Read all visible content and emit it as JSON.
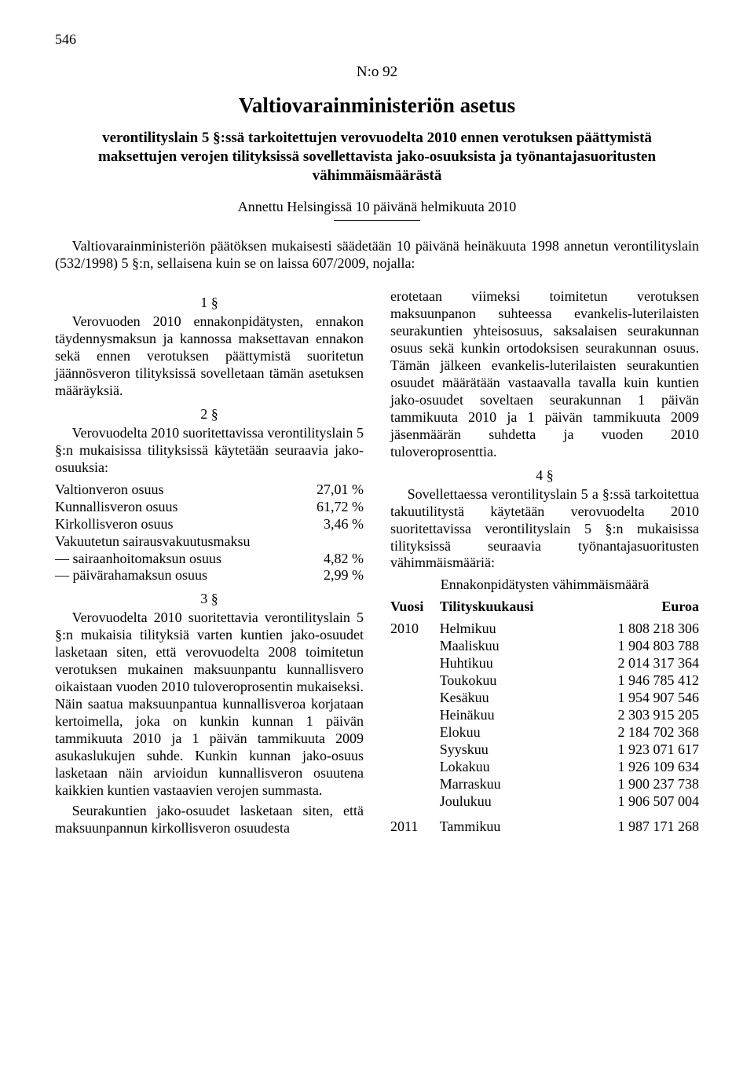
{
  "page_number": "546",
  "doc_number": "N:o 92",
  "authority": "Valtiovarainministeriön asetus",
  "title": "verontilityslain 5 §:ssä tarkoitettujen verovuodelta 2010 ennen verotuksen päättymistä maksettujen verojen tilityksissä sovellettavista jako-osuuksista ja työnantajasuoritusten vähimmäismäärästä",
  "given": "Annettu Helsingissä 10 päivänä helmikuuta 2010",
  "preamble": "Valtiovarainministeriön päätöksen mukaisesti säädetään 10 päivänä heinäkuuta 1998 annetun verontilityslain (532/1998) 5 §:n, sellaisena kuin se on laissa 607/2009, nojalla:",
  "s1_num": "1 §",
  "s1_text": "Verovuoden 2010 ennakonpidätysten, ennakon täydennysmaksun ja kannossa maksettavan ennakon sekä ennen verotuksen päättymistä suoritetun jäännösveron tilityksissä sovelletaan tämän asetuksen määräyksiä.",
  "s2_num": "2 §",
  "s2_text": "Verovuodelta 2010 suoritettavissa verontilityslain 5 §:n mukaisissa tilityksissä käytetään seuraavia jako-osuuksia:",
  "shares": [
    {
      "label": "Valtionveron osuus",
      "value": "27,01 %"
    },
    {
      "label": "Kunnallisveron osuus",
      "value": "61,72 %"
    },
    {
      "label": "Kirkollisveron osuus",
      "value": "3,46 %"
    },
    {
      "label": "Vakuutetun sairausvakuutusmaksu",
      "value": ""
    },
    {
      "label": "— sairaanhoitomaksun osuus",
      "value": "4,82 %"
    },
    {
      "label": "— päivärahamaksun osuus",
      "value": "2,99 %"
    }
  ],
  "s3_num": "3 §",
  "s3_text": "Verovuodelta 2010 suoritettavia verontilityslain 5 §:n mukaisia tilityksiä varten kuntien jako-osuudet lasketaan siten, että verovuodelta 2008 toimitetun verotuksen mukainen maksuunpantu kunnallisvero oikaistaan vuoden 2010 tuloveroprosentin mukaiseksi. Näin saatua maksuunpantua kunnallisveroa korjataan kertoimella, joka on kunkin kunnan 1 päivän tammikuuta 2010 ja 1 päivän tammikuuta 2009 asukaslukujen suhde. Kunkin kunnan jako-osuus lasketaan näin arvioidun kunnallisveron osuutena kaikkien kuntien vastaavien verojen summasta.",
  "s3_text2": "Seurakuntien jako-osuudet lasketaan siten, että maksuunpannun kirkollisveron osuudesta",
  "s3_cont": "erotetaan viimeksi toimitetun verotuksen maksuunpanon suhteessa evankelis-luterilaisten seurakuntien yhteisosuus, saksalaisen seurakunnan osuus sekä kunkin ortodoksisen seurakunnan osuus. Tämän jälkeen evankelis-luterilaisten seurakuntien osuudet määrätään vastaavalla tavalla kuin kuntien jako-osuudet soveltaen seurakunnan 1 päivän tammikuuta 2010 ja 1 päivän tammikuuta 2009 jäsenmäärän suhdetta ja vuoden 2010 tuloveroprosenttia.",
  "s4_num": "4 §",
  "s4_text": "Sovellettaessa verontilityslain 5 a §:ssä tarkoitettua takuutilitystä käytetään verovuodelta 2010 suoritettavissa verontilityslain 5 §:n mukaisissa tilityksissä seuraavia työnantajasuoritusten vähimmäismääriä:",
  "min_header": "Ennakonpidätysten vähimmäismäärä",
  "min_cols": {
    "year": "Vuosi",
    "month": "Tilityskuukausi",
    "amount": "Euroa"
  },
  "min_rows": [
    {
      "year": "2010",
      "month": "Helmikuu",
      "amount": "1 808 218 306"
    },
    {
      "year": "",
      "month": "Maaliskuu",
      "amount": "1 904 803 788"
    },
    {
      "year": "",
      "month": "Huhtikuu",
      "amount": "2 014 317 364"
    },
    {
      "year": "",
      "month": "Toukokuu",
      "amount": "1 946 785 412"
    },
    {
      "year": "",
      "month": "Kesäkuu",
      "amount": "1 954 907 546"
    },
    {
      "year": "",
      "month": "Heinäkuu",
      "amount": "2 303 915 205"
    },
    {
      "year": "",
      "month": "Elokuu",
      "amount": "2 184 702 368"
    },
    {
      "year": "",
      "month": "Syyskuu",
      "amount": "1 923 071 617"
    },
    {
      "year": "",
      "month": "Lokakuu",
      "amount": "1 926 109 634"
    },
    {
      "year": "",
      "month": "Marraskuu",
      "amount": "1 900 237 738"
    },
    {
      "year": "",
      "month": "Joulukuu",
      "amount": "1 906 507 004"
    }
  ],
  "min_rows2": [
    {
      "year": "2011",
      "month": "Tammikuu",
      "amount": "1 987 171 268"
    }
  ]
}
